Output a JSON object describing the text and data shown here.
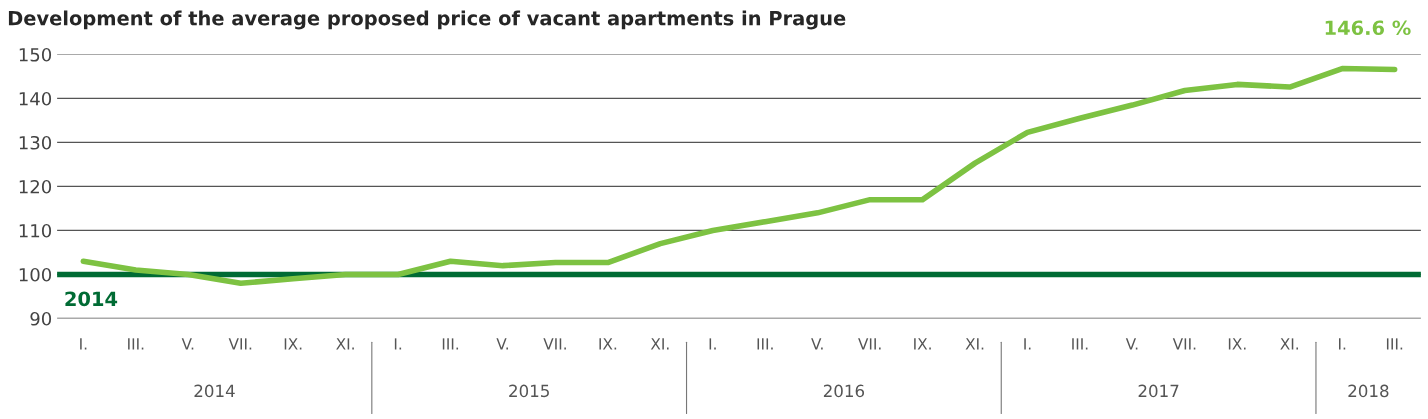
{
  "chart_data": {
    "type": "line",
    "title": "Development of the average proposed price of vacant apartments in Prague",
    "categories": [
      "I.",
      "III.",
      "V.",
      "VII.",
      "IX.",
      "XI.",
      "I.",
      "III.",
      "V.",
      "VII.",
      "IX.",
      "XI.",
      "I.",
      "III.",
      "V.",
      "VII.",
      "IX.",
      "XI.",
      "I.",
      "III.",
      "V.",
      "VII.",
      "IX.",
      "XI.",
      "I.",
      "III."
    ],
    "series": [
      {
        "color": "#7dc242",
        "values": [
          103,
          101,
          100,
          98,
          99,
          100,
          100,
          103,
          102,
          102.7,
          102.7,
          107,
          110,
          112,
          114,
          117,
          117,
          125.3,
          132.3,
          135.5,
          138.5,
          141.8,
          143.2,
          142.6,
          146.8,
          146.6
        ],
        "value_labels": [
          null,
          null,
          null,
          null,
          null,
          null,
          null,
          null,
          null,
          null,
          null,
          null,
          null,
          null,
          null,
          null,
          null,
          null,
          null,
          null,
          null,
          null,
          null,
          null,
          null,
          "146.6 %"
        ]
      }
    ],
    "ylim": [
      90,
      150
    ],
    "yticks": [
      90,
      100,
      110,
      120,
      130,
      140,
      150
    ],
    "grid": "y",
    "marker": "none",
    "line_style": "solid",
    "ref_lines": [
      {
        "axis": "y",
        "value": 100,
        "color": "#006b34"
      }
    ],
    "annotations": [
      {
        "text": "2014",
        "y": 100
      },
      "2014",
      "2015",
      "2016",
      "2017",
      "2018"
    ]
  }
}
